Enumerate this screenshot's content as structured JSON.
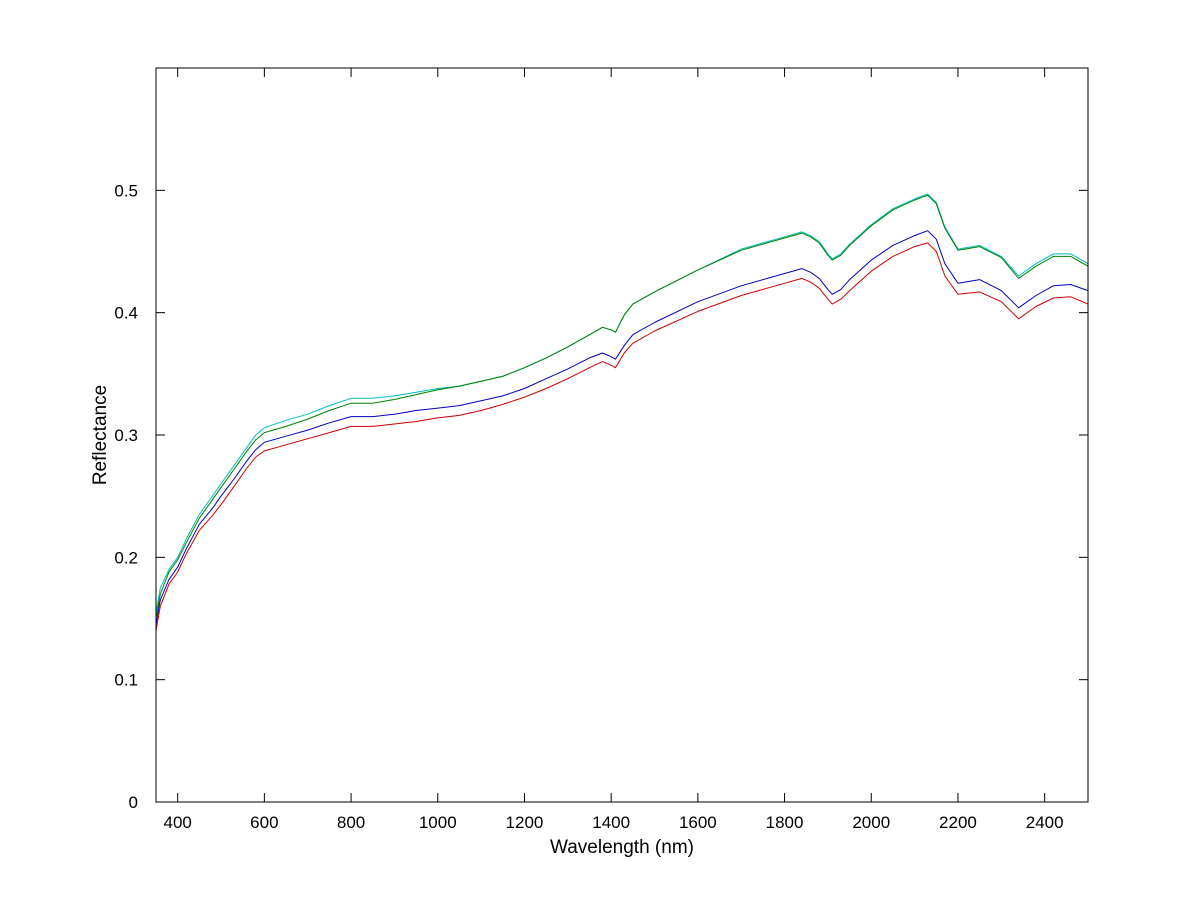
{
  "chart_data": {
    "type": "line",
    "title": "",
    "xlabel": "Wavelength (nm)",
    "ylabel": "Reflectance",
    "xlim": [
      350,
      2500
    ],
    "ylim": [
      0,
      0.6
    ],
    "xticks": [
      400,
      600,
      800,
      1000,
      1200,
      1400,
      1600,
      1800,
      2000,
      2200,
      2400
    ],
    "yticks": [
      0,
      0.1,
      0.2,
      0.3,
      0.4,
      0.5
    ],
    "xtick_labels": [
      "400",
      "600",
      "800",
      "1000",
      "1200",
      "1400",
      "1600",
      "1800",
      "2000",
      "2200",
      "2400"
    ],
    "ytick_labels": [
      "0",
      "0.1",
      "0.2",
      "0.3",
      "0.4",
      "0.5"
    ],
    "grid": false,
    "legend": "none",
    "series": [
      {
        "color": "#00bfbf",
        "x": [
          350,
          360,
          380,
          400,
          420,
          450,
          480,
          500,
          530,
          560,
          580,
          600,
          650,
          700,
          750,
          800,
          850,
          900,
          950,
          1000,
          1050,
          1100,
          1150,
          1200,
          1250,
          1300,
          1350,
          1380,
          1400,
          1410,
          1430,
          1450,
          1500,
          1600,
          1700,
          1800,
          1840,
          1860,
          1880,
          1900,
          1910,
          1930,
          1950,
          2000,
          2050,
          2100,
          2130,
          2150,
          2170,
          2200,
          2250,
          2300,
          2340,
          2380,
          2420,
          2460,
          2500
        ],
        "y": [
          0.155,
          0.175,
          0.19,
          0.2,
          0.215,
          0.235,
          0.25,
          0.26,
          0.275,
          0.29,
          0.3,
          0.306,
          0.312,
          0.317,
          0.324,
          0.33,
          0.33,
          0.332,
          0.335,
          0.338,
          0.34,
          0.344,
          0.348,
          0.355,
          0.363,
          0.372,
          0.382,
          0.388,
          0.386,
          0.384,
          0.398,
          0.407,
          0.417,
          0.435,
          0.452,
          0.462,
          0.466,
          0.463,
          0.458,
          0.448,
          0.444,
          0.448,
          0.456,
          0.472,
          0.485,
          0.493,
          0.497,
          0.49,
          0.47,
          0.452,
          0.455,
          0.446,
          0.43,
          0.44,
          0.448,
          0.448,
          0.44
        ]
      },
      {
        "color": "#008000",
        "x": [
          350,
          360,
          380,
          400,
          420,
          450,
          480,
          500,
          530,
          560,
          580,
          600,
          650,
          700,
          750,
          800,
          850,
          900,
          950,
          1000,
          1050,
          1100,
          1150,
          1200,
          1250,
          1300,
          1350,
          1380,
          1400,
          1410,
          1430,
          1450,
          1500,
          1600,
          1700,
          1800,
          1840,
          1860,
          1880,
          1900,
          1910,
          1930,
          1950,
          2000,
          2050,
          2100,
          2130,
          2150,
          2170,
          2200,
          2250,
          2300,
          2340,
          2380,
          2420,
          2460,
          2500
        ],
        "y": [
          0.15,
          0.17,
          0.188,
          0.198,
          0.212,
          0.232,
          0.247,
          0.257,
          0.272,
          0.287,
          0.296,
          0.302,
          0.307,
          0.313,
          0.32,
          0.326,
          0.326,
          0.329,
          0.333,
          0.337,
          0.34,
          0.344,
          0.348,
          0.355,
          0.363,
          0.372,
          0.382,
          0.388,
          0.386,
          0.384,
          0.398,
          0.407,
          0.417,
          0.435,
          0.451,
          0.461,
          0.465,
          0.462,
          0.457,
          0.447,
          0.443,
          0.447,
          0.455,
          0.471,
          0.484,
          0.492,
          0.496,
          0.489,
          0.469,
          0.451,
          0.454,
          0.445,
          0.428,
          0.438,
          0.446,
          0.446,
          0.438
        ]
      },
      {
        "color": "#0000bf",
        "x": [
          350,
          360,
          380,
          400,
          420,
          450,
          480,
          500,
          530,
          560,
          580,
          600,
          650,
          700,
          750,
          800,
          850,
          900,
          950,
          1000,
          1050,
          1100,
          1150,
          1200,
          1250,
          1300,
          1350,
          1380,
          1400,
          1410,
          1430,
          1450,
          1500,
          1600,
          1700,
          1800,
          1840,
          1860,
          1880,
          1900,
          1910,
          1930,
          1950,
          2000,
          2050,
          2100,
          2130,
          2150,
          2170,
          2200,
          2250,
          2300,
          2340,
          2380,
          2420,
          2460,
          2500
        ],
        "y": [
          0.145,
          0.165,
          0.182,
          0.192,
          0.207,
          0.227,
          0.24,
          0.25,
          0.264,
          0.279,
          0.288,
          0.294,
          0.299,
          0.304,
          0.31,
          0.315,
          0.315,
          0.317,
          0.32,
          0.322,
          0.324,
          0.328,
          0.332,
          0.338,
          0.346,
          0.354,
          0.363,
          0.367,
          0.364,
          0.362,
          0.373,
          0.382,
          0.392,
          0.409,
          0.422,
          0.432,
          0.436,
          0.433,
          0.428,
          0.419,
          0.415,
          0.419,
          0.427,
          0.443,
          0.455,
          0.463,
          0.467,
          0.46,
          0.44,
          0.424,
          0.427,
          0.418,
          0.404,
          0.414,
          0.422,
          0.423,
          0.418
        ]
      },
      {
        "color": "#cc0000",
        "x": [
          350,
          360,
          380,
          400,
          420,
          450,
          480,
          500,
          530,
          560,
          580,
          600,
          650,
          700,
          750,
          800,
          850,
          900,
          950,
          1000,
          1050,
          1100,
          1150,
          1200,
          1250,
          1300,
          1350,
          1380,
          1400,
          1410,
          1430,
          1450,
          1500,
          1600,
          1700,
          1800,
          1840,
          1860,
          1880,
          1900,
          1910,
          1930,
          1950,
          2000,
          2050,
          2100,
          2130,
          2150,
          2170,
          2200,
          2250,
          2300,
          2340,
          2380,
          2420,
          2460,
          2500
        ],
        "y": [
          0.14,
          0.16,
          0.178,
          0.188,
          0.203,
          0.222,
          0.234,
          0.243,
          0.258,
          0.273,
          0.282,
          0.287,
          0.292,
          0.297,
          0.302,
          0.307,
          0.307,
          0.309,
          0.311,
          0.314,
          0.316,
          0.32,
          0.325,
          0.331,
          0.338,
          0.346,
          0.355,
          0.36,
          0.357,
          0.355,
          0.367,
          0.375,
          0.385,
          0.401,
          0.414,
          0.424,
          0.428,
          0.425,
          0.42,
          0.411,
          0.407,
          0.411,
          0.418,
          0.434,
          0.446,
          0.454,
          0.457,
          0.45,
          0.43,
          0.415,
          0.417,
          0.409,
          0.395,
          0.405,
          0.412,
          0.413,
          0.407
        ]
      }
    ]
  }
}
